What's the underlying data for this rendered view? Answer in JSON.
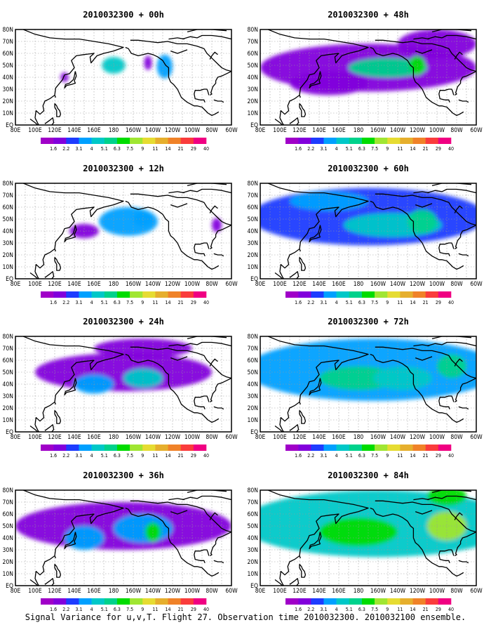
{
  "panels": [
    {
      "title": "2010032300 + 00h",
      "blobs": [
        {
          "lon": 180,
          "lat": 50,
          "rl": 12,
          "rt": 7,
          "v": 6
        },
        {
          "lon": 232,
          "lat": 49,
          "rl": 8,
          "rt": 10,
          "v": 5
        },
        {
          "lon": 215,
          "lat": 52,
          "rl": 4,
          "rt": 6,
          "v": 3
        },
        {
          "lon": 130,
          "lat": 40,
          "rl": 4,
          "rt": 4,
          "v": 2.5
        }
      ]
    },
    {
      "title": "2010032300 + 48h",
      "blobs": [
        {
          "lon": 190,
          "lat": 48,
          "rl": 110,
          "rt": 20,
          "v": 3
        },
        {
          "lon": 210,
          "lat": 48,
          "rl": 40,
          "rt": 8,
          "v": 7
        },
        {
          "lon": 240,
          "lat": 50,
          "rl": 8,
          "rt": 8,
          "v": 8
        },
        {
          "lon": 150,
          "lat": 35,
          "rl": 40,
          "rt": 10,
          "v": 2.5
        },
        {
          "lon": 260,
          "lat": 68,
          "rl": 40,
          "rt": 12,
          "v": 3
        }
      ]
    },
    {
      "title": "2010032300 + 12h",
      "blobs": [
        {
          "lon": 195,
          "lat": 48,
          "rl": 30,
          "rt": 12,
          "v": 4
        },
        {
          "lon": 210,
          "lat": 50,
          "rl": 10,
          "rt": 6,
          "v": 5
        },
        {
          "lon": 150,
          "lat": 40,
          "rl": 15,
          "rt": 6,
          "v": 2.5
        },
        {
          "lon": 285,
          "lat": 45,
          "rl": 5,
          "rt": 6,
          "v": 3
        }
      ]
    },
    {
      "title": "2010032300 + 60h",
      "blobs": [
        {
          "lon": 190,
          "lat": 52,
          "rl": 120,
          "rt": 24,
          "v": 3.5
        },
        {
          "lon": 215,
          "lat": 45,
          "rl": 50,
          "rt": 10,
          "v": 6
        },
        {
          "lon": 245,
          "lat": 48,
          "rl": 15,
          "rt": 10,
          "v": 7
        },
        {
          "lon": 150,
          "lat": 65,
          "rl": 40,
          "rt": 8,
          "v": 5
        }
      ]
    },
    {
      "title": "2010032300 + 24h",
      "blobs": [
        {
          "lon": 190,
          "lat": 50,
          "rl": 90,
          "rt": 16,
          "v": 3
        },
        {
          "lon": 210,
          "lat": 45,
          "rl": 20,
          "rt": 8,
          "v": 5.5
        },
        {
          "lon": 160,
          "lat": 40,
          "rl": 20,
          "rt": 8,
          "v": 4
        },
        {
          "lon": 210,
          "lat": 70,
          "rl": 50,
          "rt": 8,
          "v": 2.5
        }
      ]
    },
    {
      "title": "2010032300 + 72h",
      "blobs": [
        {
          "lon": 195,
          "lat": 52,
          "rl": 130,
          "rt": 26,
          "v": 4
        },
        {
          "lon": 180,
          "lat": 45,
          "rl": 40,
          "rt": 10,
          "v": 7
        },
        {
          "lon": 225,
          "lat": 45,
          "rl": 30,
          "rt": 10,
          "v": 6
        },
        {
          "lon": 275,
          "lat": 55,
          "rl": 15,
          "rt": 10,
          "v": 7
        }
      ]
    },
    {
      "title": "2010032300 + 36h",
      "blobs": [
        {
          "lon": 190,
          "lat": 50,
          "rl": 110,
          "rt": 20,
          "v": 3
        },
        {
          "lon": 210,
          "lat": 48,
          "rl": 30,
          "rt": 12,
          "v": 5
        },
        {
          "lon": 220,
          "lat": 45,
          "rl": 8,
          "rt": 8,
          "v": 8
        },
        {
          "lon": 150,
          "lat": 40,
          "rl": 20,
          "rt": 10,
          "v": 4
        }
      ]
    },
    {
      "title": "2010032300 + 84h",
      "blobs": [
        {
          "lon": 200,
          "lat": 52,
          "rl": 140,
          "rt": 28,
          "v": 5.5
        },
        {
          "lon": 180,
          "lat": 45,
          "rl": 40,
          "rt": 12,
          "v": 8
        },
        {
          "lon": 270,
          "lat": 50,
          "rl": 20,
          "rt": 12,
          "v": 9
        },
        {
          "lon": 270,
          "lat": 75,
          "rl": 20,
          "rt": 8,
          "v": 8
        }
      ]
    }
  ],
  "map": {
    "lon_ticks": [
      "80E",
      "100E",
      "120E",
      "140E",
      "160E",
      "180",
      "160W",
      "140W",
      "120W",
      "100W",
      "80W",
      "60W"
    ],
    "lat_ticks": [
      "EQ",
      "10N",
      "20N",
      "30N",
      "40N",
      "50N",
      "60N",
      "70N",
      "80N"
    ],
    "lon_range": [
      80,
      300
    ],
    "lat_range": [
      0,
      80
    ]
  },
  "colorbar": {
    "labels": [
      "1.6",
      "2.2",
      "3.1",
      "4",
      "5.1",
      "6.3",
      "7.5",
      "9",
      "11",
      "14",
      "21",
      "29",
      "40"
    ],
    "colors": [
      "#a000c8",
      "#8200dc",
      "#1e3cff",
      "#00a0ff",
      "#00c8c8",
      "#00d28c",
      "#00dc00",
      "#a0e632",
      "#e6dc32",
      "#e6af2d",
      "#f08228",
      "#fa3c3c",
      "#f00082"
    ]
  },
  "footer": "Signal Variance for u,v,T. Flight 27. Observation time 2010032300. 2010032100 ensemble."
}
